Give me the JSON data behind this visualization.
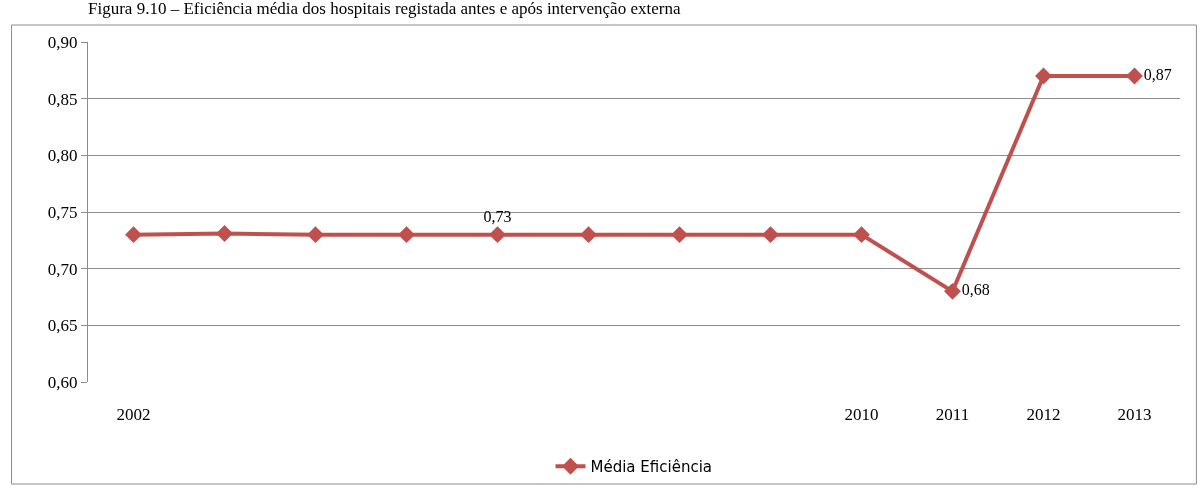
{
  "chart_data": {
    "type": "line",
    "title": "Figura 9.10 – Eficiência média dos hospitais registada antes e após intervenção externa",
    "categories": [
      "2002",
      null,
      null,
      null,
      null,
      null,
      null,
      null,
      "2010",
      "2011",
      "2012",
      "2013"
    ],
    "series": [
      {
        "name": "Média Eficiência",
        "color": "#c0504d",
        "values": [
          0.73,
          0.731,
          0.73,
          0.73,
          0.73,
          0.73,
          0.73,
          0.73,
          0.73,
          0.68,
          0.87,
          0.87
        ],
        "value_labels": [
          null,
          null,
          null,
          null,
          "0,73",
          null,
          null,
          null,
          null,
          "0,68",
          null,
          "0,87"
        ]
      }
    ],
    "ylim": [
      0.6,
      0.9
    ],
    "yticks": [
      {
        "value": 0.6,
        "label": "0,60"
      },
      {
        "value": 0.65,
        "label": "0,65"
      },
      {
        "value": 0.7,
        "label": "0,70"
      },
      {
        "value": 0.75,
        "label": "0,75"
      },
      {
        "value": 0.8,
        "label": "0,80"
      },
      {
        "value": 0.85,
        "label": "0,85"
      },
      {
        "value": 0.9,
        "label": "0,90"
      }
    ],
    "grid": "y",
    "legend": "bottom",
    "marker": "diamond",
    "line_style": "solid"
  }
}
